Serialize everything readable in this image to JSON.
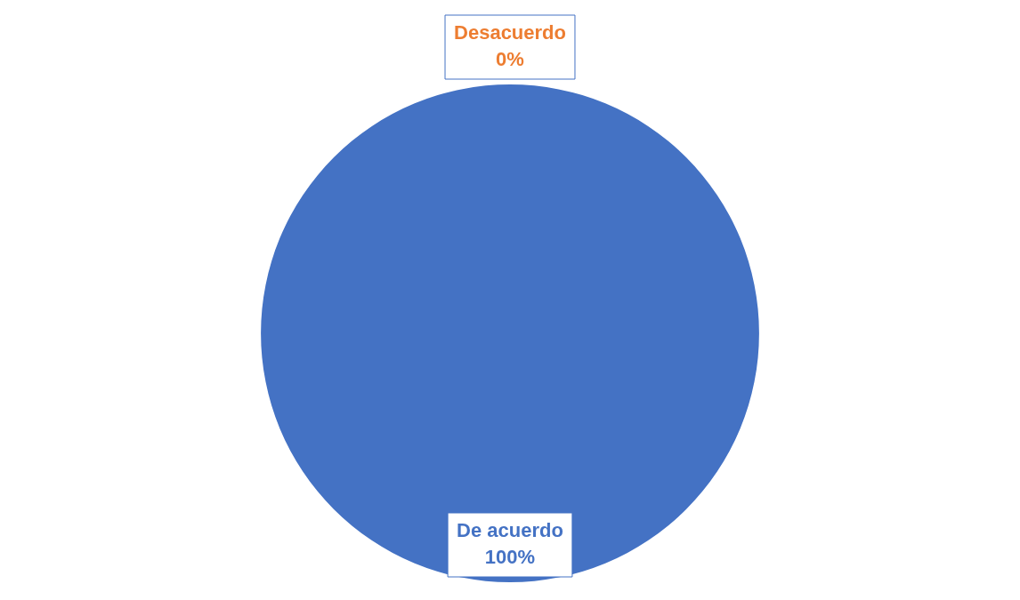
{
  "chart_data": {
    "type": "pie",
    "categories": [
      "De acuerdo",
      "Desacuerdo"
    ],
    "values": [
      100,
      0
    ],
    "colors": [
      "#4472c4",
      "#ed7d31"
    ],
    "value_labels": [
      "100%",
      "0%"
    ],
    "legend": false
  }
}
